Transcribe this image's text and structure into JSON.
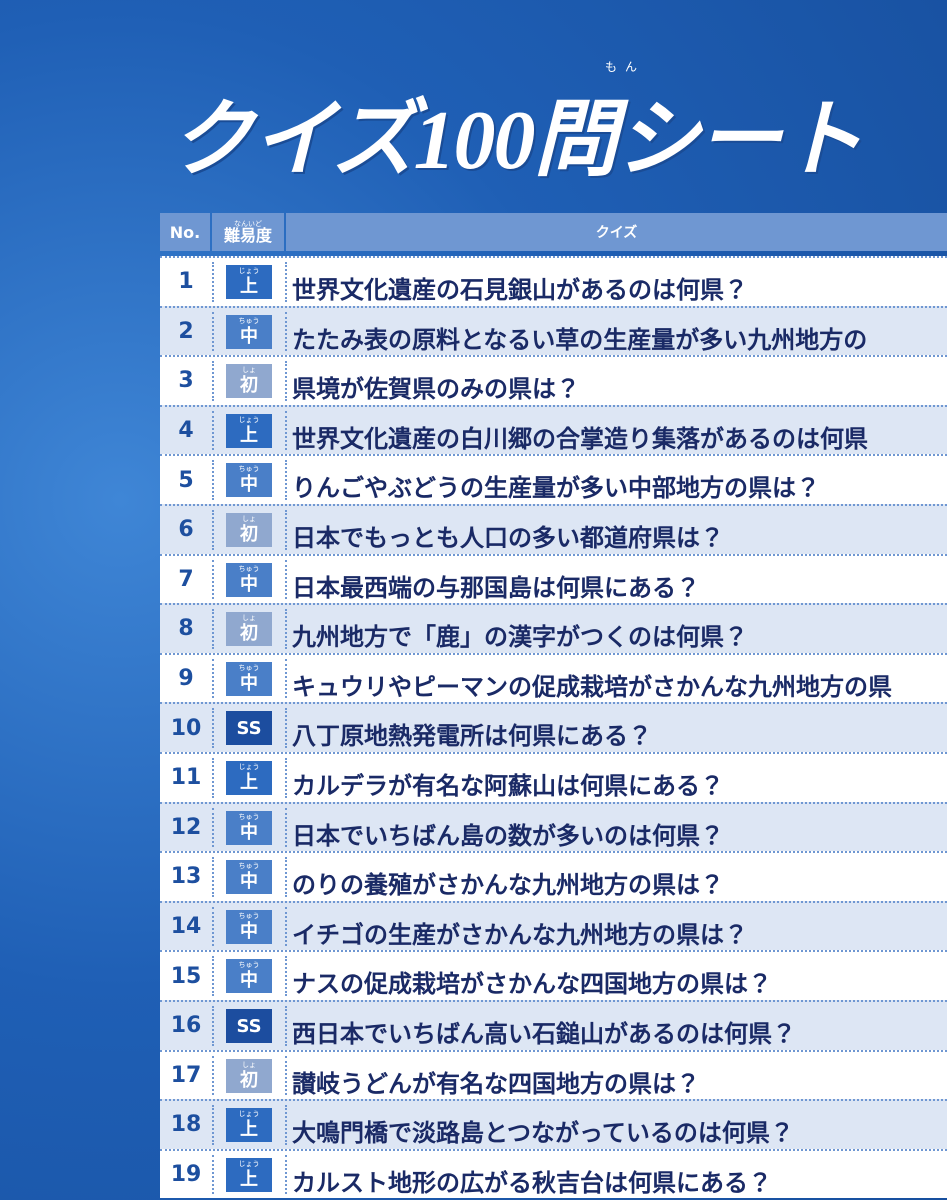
{
  "header": {
    "title": "クイズ100問シート",
    "title_ruby": "もん"
  },
  "table": {
    "columns": [
      "No.",
      "難易度",
      "クイズ"
    ],
    "difficulty_ruby": "なんいど",
    "levels": [
      {
        "label": "上",
        "ruby": "じょう",
        "color": "#2d6bc0"
      },
      {
        "label": "中",
        "ruby": "ちゅう",
        "color": "#4a7fc8"
      },
      {
        "label": "初",
        "ruby": "しょ",
        "color": "#90a8cf"
      },
      {
        "label": "SS",
        "color": "#1c4d9f"
      }
    ],
    "rows": [
      [
        1,
        0,
        "世界文化遺産の石見銀山があるのは何県？"
      ],
      [
        2,
        1,
        "たたみ表の原料となるい草の生産量が多い九州地方の"
      ],
      [
        3,
        2,
        "県境が佐賀県のみの県は？"
      ],
      [
        4,
        0,
        "世界文化遺産の白川郷の合掌造り集落があるのは何県"
      ],
      [
        5,
        1,
        "りんごやぶどうの生産量が多い中部地方の県は？"
      ],
      [
        6,
        2,
        "日本でもっとも人口の多い都道府県は？"
      ],
      [
        7,
        1,
        "日本最西端の与那国島は何県にある？"
      ],
      [
        8,
        2,
        "九州地方で「鹿」の漢字がつくのは何県？"
      ],
      [
        9,
        1,
        "キュウリやピーマンの促成栽培がさかんな九州地方の県"
      ],
      [
        10,
        3,
        "八丁原地熱発電所は何県にある？"
      ],
      [
        11,
        0,
        "カルデラが有名な阿蘇山は何県にある？"
      ],
      [
        12,
        1,
        "日本でいちばん島の数が多いのは何県？"
      ],
      [
        13,
        1,
        "のりの養殖がさかんな九州地方の県は？"
      ],
      [
        14,
        1,
        "イチゴの生産がさかんな九州地方の県は？"
      ],
      [
        15,
        1,
        "ナスの促成栽培がさかんな四国地方の県は？"
      ],
      [
        16,
        3,
        "西日本でいちばん高い石鎚山があるのは何県？"
      ],
      [
        17,
        2,
        "讃岐うどんが有名な四国地方の県は？"
      ],
      [
        18,
        0,
        "大鳴門橋で淡路島とつながっているのは何県？"
      ],
      [
        19,
        0,
        "カルスト地形の広がる秋吉台は何県にある？"
      ]
    ]
  }
}
